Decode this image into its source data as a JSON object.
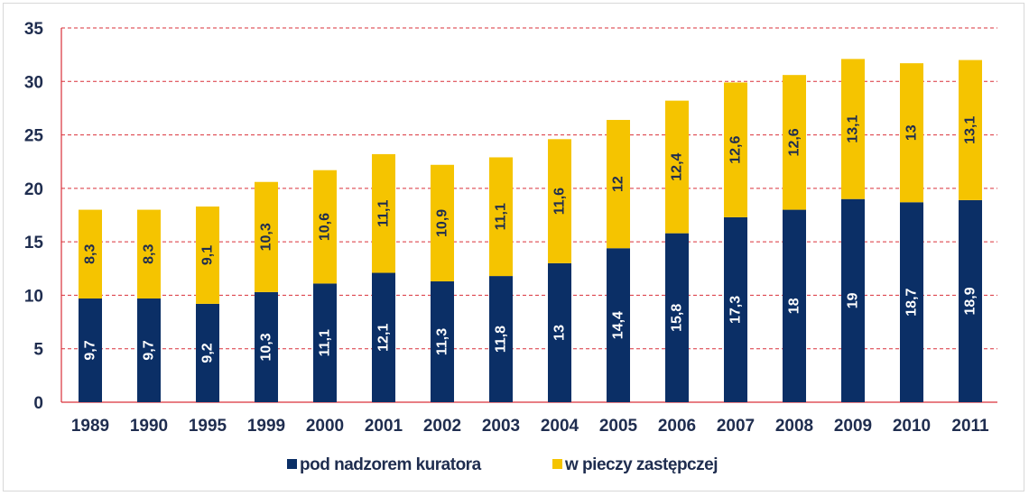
{
  "chart_data": {
    "type": "bar",
    "stacked": true,
    "categories": [
      "1989",
      "1990",
      "1995",
      "1999",
      "2000",
      "2001",
      "2002",
      "2003",
      "2004",
      "2005",
      "2006",
      "2007",
      "2008",
      "2009",
      "2010",
      "2011"
    ],
    "series": [
      {
        "name": "pod nadzorem kuratora",
        "color": "#0b2f66",
        "label_color": "#ffffff",
        "values": [
          9.7,
          9.7,
          9.2,
          10.3,
          11.1,
          12.1,
          11.3,
          11.8,
          13,
          14.4,
          15.8,
          17.3,
          18,
          19,
          18.7,
          18.9
        ],
        "labels": [
          "9,7",
          "9,7",
          "9,2",
          "10,3",
          "11,1",
          "12,1",
          "11,3",
          "11,8",
          "13",
          "14,4",
          "15,8",
          "17,3",
          "18",
          "19",
          "18,7",
          "18,9"
        ]
      },
      {
        "name": "w pieczy zastępczej",
        "color": "#f5c400",
        "label_color": "#1f2d4f",
        "values": [
          8.3,
          8.3,
          9.1,
          10.3,
          10.6,
          11.1,
          10.9,
          11.1,
          11.6,
          12,
          12.4,
          12.6,
          12.6,
          13.1,
          13,
          13.1
        ],
        "labels": [
          "8,3",
          "8,3",
          "9,1",
          "10,3",
          "10,6",
          "11,1",
          "10,9",
          "11,1",
          "11,6",
          "12",
          "12,4",
          "12,6",
          "12,6",
          "13,1",
          "13",
          "13,1"
        ]
      }
    ],
    "ylim": [
      0,
      35
    ],
    "yticks": [
      "0",
      "5",
      "10",
      "15",
      "20",
      "25",
      "30",
      "35"
    ],
    "grid": true,
    "grid_color": "#d9303a",
    "legend_position": "bottom"
  }
}
